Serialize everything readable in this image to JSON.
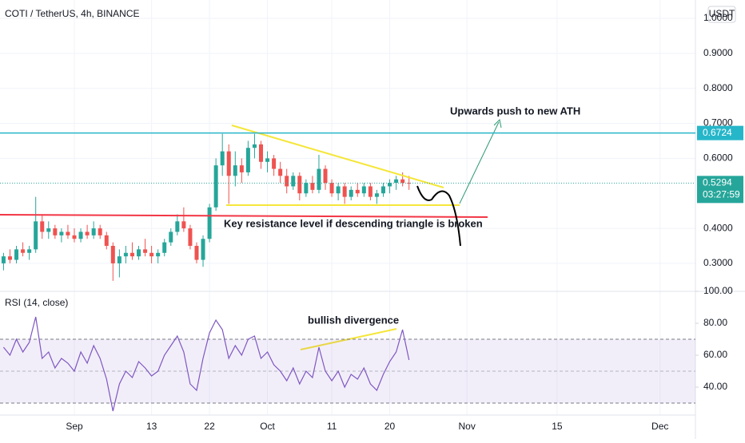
{
  "header": {
    "title": "COTI / TetherUS, 4h, BINANCE",
    "currency": "USDT"
  },
  "chart_data": [
    {
      "type": "candlestick",
      "title": "COTI / TetherUS, 4h, BINANCE",
      "x": [
        -11,
        -10,
        -9,
        -8,
        -7,
        -6,
        -5,
        -4,
        -3,
        -2,
        -1,
        0,
        1,
        2,
        3,
        4,
        5,
        6,
        7,
        8,
        9,
        10,
        11,
        12,
        13,
        14,
        15,
        16,
        17,
        18,
        19,
        20,
        21,
        22,
        23,
        24,
        25,
        26,
        27,
        28,
        29,
        30,
        31,
        32,
        33,
        34,
        35,
        36,
        37,
        38,
        39,
        40,
        41,
        42,
        43,
        44,
        45,
        46,
        47,
        48,
        49,
        50,
        51,
        52
      ],
      "open": [
        0.3,
        0.32,
        0.31,
        0.34,
        0.33,
        0.34,
        0.42,
        0.39,
        0.4,
        0.38,
        0.39,
        0.38,
        0.37,
        0.39,
        0.38,
        0.4,
        0.38,
        0.35,
        0.3,
        0.32,
        0.33,
        0.32,
        0.34,
        0.33,
        0.32,
        0.33,
        0.36,
        0.39,
        0.42,
        0.4,
        0.35,
        0.31,
        0.37,
        0.46,
        0.58,
        0.62,
        0.55,
        0.58,
        0.56,
        0.63,
        0.64,
        0.59,
        0.6,
        0.57,
        0.55,
        0.52,
        0.55,
        0.5,
        0.53,
        0.51,
        0.57,
        0.53,
        0.5,
        0.52,
        0.49,
        0.51,
        0.5,
        0.52,
        0.49,
        0.5,
        0.52,
        0.53,
        0.54,
        0.53
      ],
      "high": [
        0.33,
        0.34,
        0.35,
        0.36,
        0.35,
        0.49,
        0.44,
        0.42,
        0.41,
        0.4,
        0.41,
        0.4,
        0.4,
        0.41,
        0.42,
        0.41,
        0.39,
        0.36,
        0.34,
        0.35,
        0.36,
        0.35,
        0.37,
        0.35,
        0.34,
        0.37,
        0.4,
        0.44,
        0.46,
        0.41,
        0.36,
        0.38,
        0.47,
        0.6,
        0.67,
        0.64,
        0.62,
        0.6,
        0.65,
        0.67,
        0.65,
        0.62,
        0.61,
        0.59,
        0.57,
        0.56,
        0.56,
        0.54,
        0.55,
        0.61,
        0.58,
        0.54,
        0.53,
        0.53,
        0.52,
        0.53,
        0.53,
        0.53,
        0.51,
        0.53,
        0.54,
        0.55,
        0.56,
        0.55
      ],
      "low": [
        0.28,
        0.3,
        0.3,
        0.32,
        0.31,
        0.33,
        0.37,
        0.37,
        0.37,
        0.36,
        0.37,
        0.36,
        0.36,
        0.37,
        0.37,
        0.37,
        0.34,
        0.25,
        0.26,
        0.3,
        0.31,
        0.31,
        0.32,
        0.3,
        0.3,
        0.32,
        0.35,
        0.38,
        0.39,
        0.34,
        0.3,
        0.29,
        0.36,
        0.45,
        0.55,
        0.47,
        0.52,
        0.53,
        0.55,
        0.6,
        0.57,
        0.56,
        0.55,
        0.53,
        0.5,
        0.51,
        0.48,
        0.49,
        0.5,
        0.5,
        0.51,
        0.49,
        0.48,
        0.47,
        0.48,
        0.49,
        0.49,
        0.48,
        0.47,
        0.49,
        0.5,
        0.51,
        0.52,
        0.51
      ],
      "close": [
        0.32,
        0.31,
        0.34,
        0.33,
        0.34,
        0.42,
        0.39,
        0.4,
        0.38,
        0.39,
        0.38,
        0.37,
        0.39,
        0.38,
        0.4,
        0.38,
        0.35,
        0.3,
        0.32,
        0.33,
        0.32,
        0.34,
        0.33,
        0.32,
        0.33,
        0.36,
        0.39,
        0.42,
        0.4,
        0.35,
        0.31,
        0.37,
        0.46,
        0.58,
        0.62,
        0.55,
        0.58,
        0.56,
        0.63,
        0.64,
        0.59,
        0.6,
        0.57,
        0.55,
        0.52,
        0.55,
        0.5,
        0.53,
        0.51,
        0.57,
        0.53,
        0.5,
        0.52,
        0.49,
        0.51,
        0.5,
        0.52,
        0.49,
        0.5,
        0.52,
        0.53,
        0.54,
        0.53,
        0.5294
      ],
      "up_color": "#26a69a",
      "down_color": "#ef5350",
      "xlim": [
        -11.55,
        96.5
      ],
      "xticks": [
        {
          "value": 0,
          "label": "Sep"
        },
        {
          "value": 12,
          "label": "13"
        },
        {
          "value": 21,
          "label": "22"
        },
        {
          "value": 30,
          "label": "Oct"
        },
        {
          "value": 40,
          "label": "11"
        },
        {
          "value": 49,
          "label": "20"
        },
        {
          "value": 61,
          "label": "Nov"
        },
        {
          "value": 75,
          "label": "15"
        },
        {
          "value": 91,
          "label": "Dec"
        }
      ],
      "ylim": [
        0.22,
        1.0525
      ],
      "yticks": [
        {
          "value": 1.0,
          "label": "1.0000"
        },
        {
          "value": 0.9,
          "label": "0.9000"
        },
        {
          "value": 0.8,
          "label": "0.8000"
        },
        {
          "value": 0.7,
          "label": "0.7000"
        },
        {
          "value": 0.6,
          "label": "0.6000"
        },
        {
          "value": 0.4,
          "label": "0.4000"
        },
        {
          "value": 0.3,
          "label": "0.3000"
        }
      ],
      "horizontal_line": 0.6724,
      "horizontal_line_color": "#26b6c9",
      "last_price": 0.5294,
      "countdown": "03:27:59",
      "annotations": [
        "Upwards push to new ATH",
        "Key resistance level if descending triangle is broken"
      ],
      "grid": true
    },
    {
      "type": "line",
      "title": "RSI (14, close)",
      "x": [
        -11,
        -10,
        -9,
        -8,
        -7,
        -6,
        -5,
        -4,
        -3,
        -2,
        -1,
        0,
        1,
        2,
        3,
        4,
        5,
        6,
        7,
        8,
        9,
        10,
        11,
        12,
        13,
        14,
        15,
        16,
        17,
        18,
        19,
        20,
        21,
        22,
        23,
        24,
        25,
        26,
        27,
        28,
        29,
        30,
        31,
        32,
        33,
        34,
        35,
        36,
        37,
        38,
        39,
        40,
        41,
        42,
        43,
        44,
        45,
        46,
        47,
        48,
        49,
        50,
        51,
        52
      ],
      "values": [
        65,
        60,
        70,
        62,
        68,
        84,
        58,
        62,
        52,
        58,
        55,
        50,
        62,
        55,
        66,
        58,
        45,
        25,
        42,
        50,
        46,
        56,
        52,
        47,
        50,
        60,
        66,
        72,
        62,
        42,
        38,
        58,
        74,
        82,
        76,
        58,
        66,
        60,
        70,
        72,
        58,
        62,
        54,
        50,
        44,
        52,
        42,
        50,
        46,
        65,
        50,
        44,
        50,
        40,
        48,
        45,
        52,
        42,
        38,
        48,
        56,
        62,
        76,
        57
      ],
      "color": "#7e57c2",
      "xlim": [
        -11.55,
        96.5
      ],
      "ylim": [
        22.5,
        100
      ],
      "yticks": [
        {
          "value": 100,
          "label": "100.00"
        },
        {
          "value": 80,
          "label": "80.00"
        },
        {
          "value": 60,
          "label": "60.00"
        },
        {
          "value": 40,
          "label": "40.00"
        }
      ],
      "band": [
        30,
        70
      ],
      "midline": 50,
      "annotations": [
        "bullish divergence"
      ]
    }
  ]
}
